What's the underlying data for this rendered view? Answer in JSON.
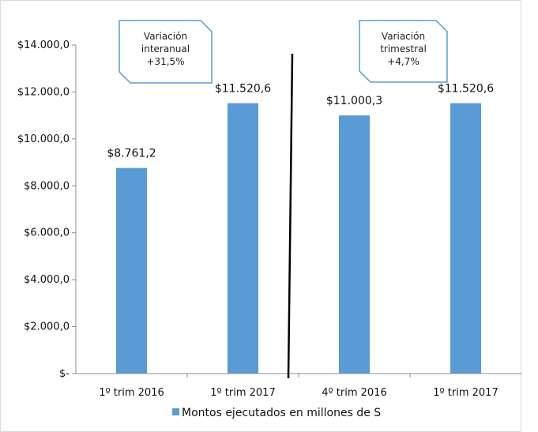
{
  "chart_data": {
    "type": "bar",
    "categories": [
      "1º trim 2016",
      "1º trim 2017",
      "4º trim 2016",
      "1º trim 2017"
    ],
    "series": [
      {
        "name": "Montos ejecutados en millones de S",
        "values": [
          8761.2,
          11520.6,
          11000.3,
          11520.6
        ],
        "color": "#5b9bd5"
      }
    ],
    "data_labels": [
      "$8.761,2",
      "$11.520,6",
      "$11.000,3",
      "$11.520,6"
    ],
    "y_ticks": [
      "$-",
      "$2.000,0",
      "$4.000,0",
      "$6.000,0",
      "$8.000,0",
      "$10.000,0",
      "$12.000,0",
      "$14.000,0"
    ],
    "ylim": [
      0,
      14000
    ],
    "legend_position": "bottom",
    "grid": false,
    "annotations": [
      {
        "lines": [
          "Variación",
          "interanual",
          "+31,5%"
        ]
      },
      {
        "lines": [
          "Variación",
          "trimestral",
          "+4,7%"
        ]
      }
    ]
  }
}
